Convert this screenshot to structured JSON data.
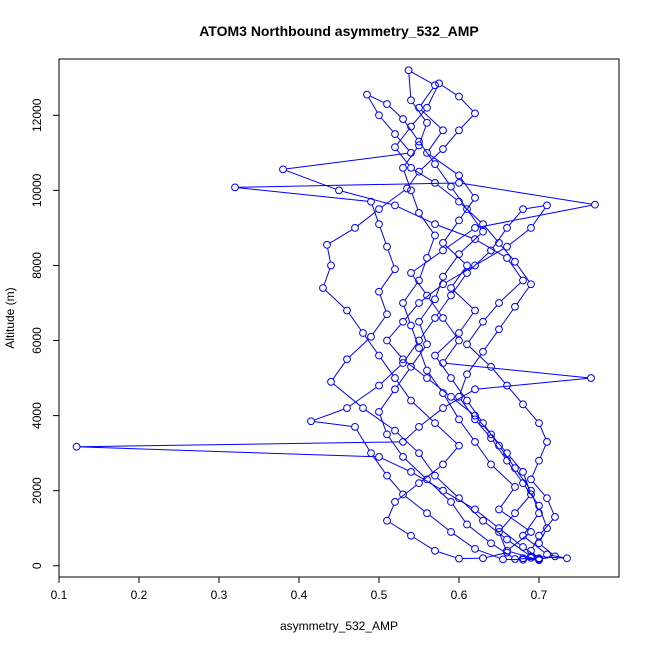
{
  "chart_data": {
    "type": "scatter",
    "title": "ATOM3 Northbound asymmetry_532_AMP",
    "xlabel": "asymmetry_532_AMP",
    "ylabel": "Altitude (m)",
    "xlim": [
      0.1,
      0.8
    ],
    "ylim": [
      -300,
      13500
    ],
    "x_ticks": [
      0.1,
      0.2,
      0.3,
      0.4,
      0.5,
      0.6,
      0.7
    ],
    "x_tick_labels": [
      "0.1",
      "0.2",
      "0.3",
      "0.4",
      "0.5",
      "0.6",
      "0.7"
    ],
    "y_ticks": [
      0,
      2000,
      4000,
      6000,
      8000,
      10000,
      12000
    ],
    "y_tick_labels": [
      "0",
      "2000",
      "4000",
      "6000",
      "8000",
      "10000",
      "12000"
    ],
    "grid": false,
    "style": "points connected by lines, open circle markers",
    "series": [
      {
        "color": "#0000ff",
        "points": [
          [
            0.68,
            200
          ],
          [
            0.7,
            150
          ],
          [
            0.66,
            400
          ],
          [
            0.69,
            900
          ],
          [
            0.65,
            1500
          ],
          [
            0.67,
            2100
          ],
          [
            0.64,
            2700
          ],
          [
            0.62,
            3300
          ],
          [
            0.6,
            3900
          ],
          [
            0.58,
            4600
          ],
          [
            0.56,
            5200
          ],
          [
            0.55,
            5800
          ],
          [
            0.54,
            6400
          ],
          [
            0.53,
            7000
          ],
          [
            0.55,
            7600
          ],
          [
            0.56,
            8200
          ],
          [
            0.57,
            8800
          ],
          [
            0.55,
            9400
          ],
          [
            0.54,
            10000
          ],
          [
            0.53,
            10600
          ],
          [
            0.55,
            11200
          ],
          [
            0.56,
            11800
          ],
          [
            0.54,
            12400
          ],
          [
            0.537,
            13200
          ],
          [
            0.57,
            12800
          ],
          [
            0.55,
            12200
          ],
          [
            0.58,
            11600
          ],
          [
            0.56,
            11000
          ],
          [
            0.6,
            10400
          ],
          [
            0.62,
            9800
          ],
          [
            0.6,
            9200
          ],
          [
            0.58,
            8600
          ],
          [
            0.61,
            8000
          ],
          [
            0.59,
            7400
          ],
          [
            0.62,
            6800
          ],
          [
            0.6,
            6200
          ],
          [
            0.57,
            5600
          ],
          [
            0.59,
            5000
          ],
          [
            0.61,
            4400
          ],
          [
            0.63,
            3800
          ],
          [
            0.65,
            3200
          ],
          [
            0.67,
            2600
          ],
          [
            0.69,
            2000
          ],
          [
            0.7,
            1400
          ],
          [
            0.68,
            800
          ],
          [
            0.71,
            300
          ],
          [
            0.735,
            200
          ],
          [
            0.69,
            250
          ],
          [
            0.66,
            700
          ],
          [
            0.63,
            1200
          ],
          [
            0.6,
            1800
          ],
          [
            0.57,
            2400
          ],
          [
            0.55,
            3000
          ],
          [
            0.52,
            3600
          ],
          [
            0.48,
            4200
          ],
          [
            0.44,
            4900
          ],
          [
            0.46,
            5500
          ],
          [
            0.49,
            6100
          ],
          [
            0.51,
            6700
          ],
          [
            0.5,
            7300
          ],
          [
            0.52,
            7900
          ],
          [
            0.51,
            8500
          ],
          [
            0.5,
            9100
          ],
          [
            0.49,
            9700
          ],
          [
            0.32,
            10080
          ],
          [
            0.6,
            10200
          ],
          [
            0.77,
            9620
          ],
          [
            0.62,
            9000
          ],
          [
            0.58,
            8400
          ],
          [
            0.54,
            7800
          ],
          [
            0.56,
            7200
          ],
          [
            0.58,
            6600
          ],
          [
            0.6,
            6000
          ],
          [
            0.58,
            5400
          ],
          [
            0.765,
            5000
          ],
          [
            0.62,
            4700
          ],
          [
            0.58,
            4200
          ],
          [
            0.55,
            3700
          ],
          [
            0.53,
            3300
          ],
          [
            0.122,
            3170
          ],
          [
            0.5,
            2900
          ],
          [
            0.54,
            2500
          ],
          [
            0.58,
            2000
          ],
          [
            0.62,
            1500
          ],
          [
            0.65,
            1000
          ],
          [
            0.68,
            500
          ],
          [
            0.7,
            200
          ],
          [
            0.67,
            180
          ],
          [
            0.64,
            600
          ],
          [
            0.61,
            1100
          ],
          [
            0.59,
            1700
          ],
          [
            0.56,
            2300
          ],
          [
            0.53,
            2900
          ],
          [
            0.51,
            3500
          ],
          [
            0.5,
            4100
          ],
          [
            0.52,
            4700
          ],
          [
            0.54,
            5300
          ],
          [
            0.56,
            5900
          ],
          [
            0.55,
            6500
          ],
          [
            0.57,
            7100
          ],
          [
            0.58,
            7700
          ],
          [
            0.6,
            8300
          ],
          [
            0.63,
            8900
          ],
          [
            0.61,
            9500
          ],
          [
            0.59,
            10100
          ],
          [
            0.57,
            10700
          ],
          [
            0.55,
            11300
          ],
          [
            0.53,
            11900
          ],
          [
            0.51,
            12300
          ],
          [
            0.485,
            12550
          ],
          [
            0.5,
            12000
          ],
          [
            0.52,
            11500
          ],
          [
            0.54,
            11000
          ],
          [
            0.38,
            10560
          ],
          [
            0.45,
            10000
          ],
          [
            0.52,
            9600
          ],
          [
            0.57,
            9100
          ],
          [
            0.62,
            8700
          ],
          [
            0.66,
            8200
          ],
          [
            0.68,
            7600
          ],
          [
            0.65,
            7000
          ],
          [
            0.63,
            6500
          ],
          [
            0.61,
            5900
          ],
          [
            0.64,
            5300
          ],
          [
            0.66,
            4800
          ],
          [
            0.68,
            4300
          ],
          [
            0.7,
            3800
          ],
          [
            0.71,
            3300
          ],
          [
            0.7,
            2800
          ],
          [
            0.69,
            2300
          ],
          [
            0.71,
            1800
          ],
          [
            0.72,
            1300
          ],
          [
            0.7,
            800
          ],
          [
            0.69,
            400
          ],
          [
            0.7,
            180
          ],
          [
            0.68,
            160
          ],
          [
            0.655,
            170
          ],
          [
            0.62,
            450
          ],
          [
            0.59,
            900
          ],
          [
            0.56,
            1400
          ],
          [
            0.53,
            1900
          ],
          [
            0.51,
            2400
          ],
          [
            0.49,
            3000
          ],
          [
            0.47,
            3700
          ],
          [
            0.415,
            3850
          ],
          [
            0.46,
            4200
          ],
          [
            0.5,
            4800
          ],
          [
            0.53,
            5400
          ],
          [
            0.55,
            6000
          ],
          [
            0.57,
            6600
          ],
          [
            0.59,
            7200
          ],
          [
            0.61,
            7800
          ],
          [
            0.64,
            8400
          ],
          [
            0.66,
            9000
          ],
          [
            0.68,
            9500
          ],
          [
            0.71,
            9600
          ],
          [
            0.69,
            9000
          ],
          [
            0.66,
            8500
          ],
          [
            0.62,
            8000
          ],
          [
            0.58,
            7500
          ],
          [
            0.55,
            7000
          ],
          [
            0.53,
            6500
          ],
          [
            0.51,
            6000
          ],
          [
            0.53,
            5500
          ],
          [
            0.56,
            5000
          ],
          [
            0.59,
            4500
          ],
          [
            0.62,
            4000
          ],
          [
            0.64,
            3500
          ],
          [
            0.66,
            3000
          ],
          [
            0.68,
            2500
          ],
          [
            0.69,
            1900
          ],
          [
            0.67,
            1400
          ],
          [
            0.65,
            900
          ],
          [
            0.66,
            350
          ],
          [
            0.63,
            200
          ],
          [
            0.6,
            190
          ],
          [
            0.57,
            400
          ],
          [
            0.54,
            800
          ],
          [
            0.51,
            1200
          ],
          [
            0.52,
            1700
          ],
          [
            0.55,
            2200
          ],
          [
            0.58,
            2700
          ],
          [
            0.6,
            3200
          ],
          [
            0.57,
            3800
          ],
          [
            0.54,
            4400
          ],
          [
            0.52,
            5000
          ],
          [
            0.5,
            5600
          ],
          [
            0.48,
            6200
          ],
          [
            0.46,
            6800
          ],
          [
            0.43,
            7400
          ],
          [
            0.44,
            8000
          ],
          [
            0.435,
            8550
          ],
          [
            0.47,
            9000
          ],
          [
            0.5,
            9500
          ],
          [
            0.535,
            10050
          ],
          [
            0.55,
            10500
          ],
          [
            0.58,
            11100
          ],
          [
            0.6,
            11600
          ],
          [
            0.62,
            12050
          ],
          [
            0.6,
            12500
          ],
          [
            0.575,
            12850
          ],
          [
            0.56,
            12200
          ],
          [
            0.54,
            11700
          ],
          [
            0.52,
            11150
          ],
          [
            0.54,
            10600
          ],
          [
            0.57,
            10200
          ],
          [
            0.6,
            9700
          ],
          [
            0.63,
            9100
          ],
          [
            0.65,
            8600
          ],
          [
            0.67,
            8100
          ],
          [
            0.69,
            7500
          ],
          [
            0.67,
            6900
          ],
          [
            0.65,
            6300
          ],
          [
            0.63,
            5700
          ],
          [
            0.61,
            5100
          ],
          [
            0.6,
            4500
          ],
          [
            0.62,
            3900
          ],
          [
            0.64,
            3400
          ],
          [
            0.66,
            2800
          ],
          [
            0.68,
            2200
          ],
          [
            0.7,
            1600
          ],
          [
            0.71,
            1000
          ],
          [
            0.7,
            600
          ],
          [
            0.72,
            250
          ],
          [
            0.7,
            170
          ],
          [
            0.69,
            210
          ]
        ]
      }
    ]
  }
}
